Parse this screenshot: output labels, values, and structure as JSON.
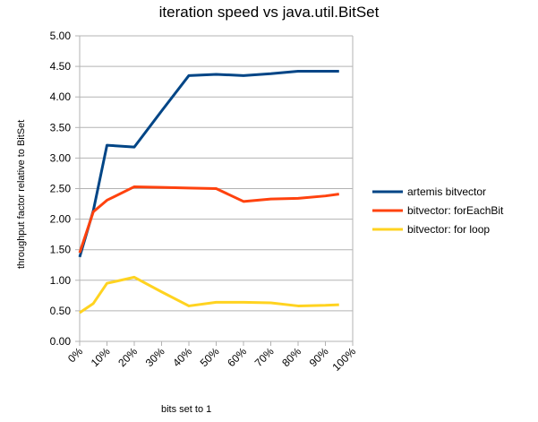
{
  "chart_data": {
    "type": "line",
    "title": "iteration speed vs java.util.BitSet",
    "xlabel": "bits set to 1",
    "ylabel": "throughput factor relative to BitSet",
    "x_ticks": [
      "0%",
      "10%",
      "20%",
      "30%",
      "40%",
      "50%",
      "60%",
      "70%",
      "80%",
      "90%",
      "100%"
    ],
    "xlim": [
      0,
      100
    ],
    "ylim": [
      0,
      5
    ],
    "y_ticks": [
      "0.00",
      "0.50",
      "1.00",
      "1.50",
      "2.00",
      "2.50",
      "3.00",
      "3.50",
      "4.00",
      "4.50",
      "5.00"
    ],
    "grid": "horizontal",
    "legend_position": "right",
    "series": [
      {
        "name": "artemis bitvector",
        "color": "#004586",
        "x": [
          0,
          5,
          10,
          20,
          30,
          40,
          50,
          60,
          70,
          80,
          90,
          95
        ],
        "y": [
          1.38,
          2.14,
          3.21,
          3.18,
          3.77,
          4.35,
          4.37,
          4.35,
          4.38,
          4.42,
          4.42,
          4.42
        ]
      },
      {
        "name": "bitvector: forEachBit",
        "color": "#ff420e",
        "x": [
          0,
          5,
          10,
          20,
          30,
          40,
          50,
          60,
          70,
          80,
          90,
          95
        ],
        "y": [
          1.45,
          2.12,
          2.31,
          2.53,
          2.52,
          2.51,
          2.5,
          2.29,
          2.33,
          2.34,
          2.38,
          2.41
        ]
      },
      {
        "name": "bitvector: for loop",
        "color": "#ffd320",
        "x": [
          0,
          5,
          10,
          20,
          30,
          40,
          50,
          60,
          70,
          80,
          90,
          95
        ],
        "y": [
          0.47,
          0.62,
          0.95,
          1.05,
          0.81,
          0.58,
          0.64,
          0.64,
          0.63,
          0.58,
          0.59,
          0.6
        ]
      }
    ]
  }
}
